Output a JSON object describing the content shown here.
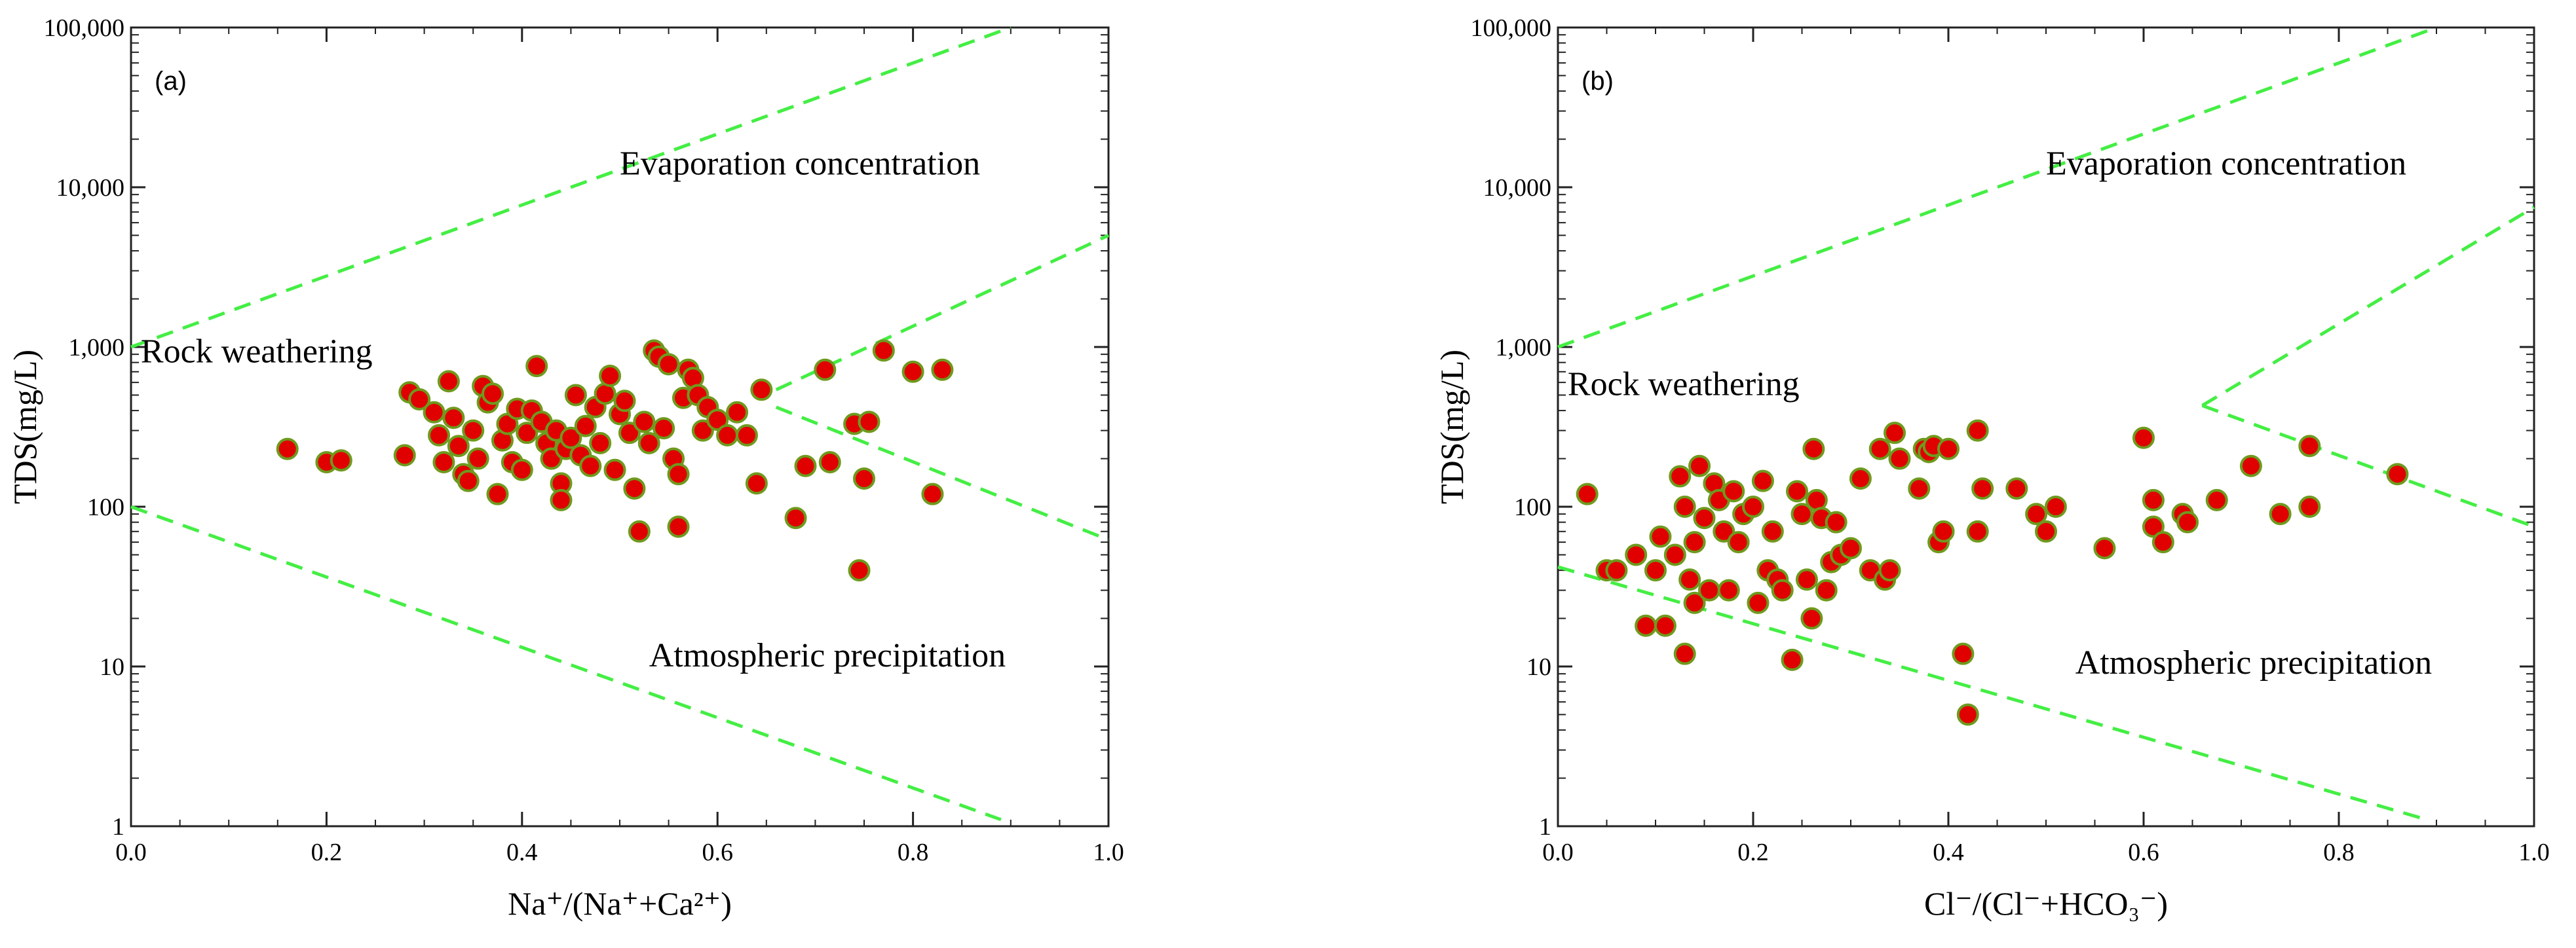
{
  "colors": {
    "point_fill": "#e00000",
    "point_edge": "#6e9a1e",
    "boundary_line": "#44ee44"
  },
  "chart_data": [
    {
      "type": "scatter",
      "panel_label": "(a)",
      "xlabel": "Na⁺/(Na⁺+Ca²⁺)",
      "ylabel": "TDS(mg/L)",
      "xlim": [
        0,
        1
      ],
      "ylim": [
        1,
        100000
      ],
      "yscale": "log",
      "x_ticks": [
        0,
        0.2,
        0.4,
        0.6,
        0.8,
        1.0
      ],
      "x_tick_labels": [
        "0.0",
        "0.2",
        "0.4",
        "0.6",
        "0.8",
        "1.0"
      ],
      "y_ticks": [
        1,
        10,
        100,
        1000,
        10000,
        100000
      ],
      "y_tick_labels": [
        "1",
        "10",
        "100",
        "1,000",
        "10,000",
        "100,000"
      ],
      "annotations": [
        {
          "text": "Evaporation concentration",
          "x": 0.5,
          "y": 12000
        },
        {
          "text": "Rock weathering",
          "x": 0.01,
          "y": 800
        },
        {
          "text": "Atmospheric precipitation",
          "x": 0.53,
          "y": 10
        }
      ],
      "boundaries": [
        [
          [
            0,
            1000
          ],
          [
            0.9,
            100000
          ]
        ],
        [
          [
            0,
            100
          ],
          [
            0.89,
            1.1
          ]
        ],
        [
          [
            0.66,
            540
          ],
          [
            1.0,
            5000
          ]
        ],
        [
          [
            0.66,
            420
          ],
          [
            1.0,
            62
          ]
        ]
      ],
      "series": [
        {
          "name": "samples",
          "points": [
            [
              0.16,
              230
            ],
            [
              0.2,
              190
            ],
            [
              0.215,
              195
            ],
            [
              0.28,
              210
            ],
            [
              0.285,
              520
            ],
            [
              0.295,
              470
            ],
            [
              0.31,
              390
            ],
            [
              0.315,
              280
            ],
            [
              0.32,
              190
            ],
            [
              0.325,
              610
            ],
            [
              0.33,
              360
            ],
            [
              0.335,
              240
            ],
            [
              0.34,
              160
            ],
            [
              0.345,
              145
            ],
            [
              0.35,
              300
            ],
            [
              0.355,
              200
            ],
            [
              0.36,
              570
            ],
            [
              0.365,
              450
            ],
            [
              0.37,
              510
            ],
            [
              0.375,
              120
            ],
            [
              0.38,
              260
            ],
            [
              0.385,
              330
            ],
            [
              0.39,
              190
            ],
            [
              0.395,
              410
            ],
            [
              0.4,
              170
            ],
            [
              0.405,
              290
            ],
            [
              0.41,
              400
            ],
            [
              0.415,
              760
            ],
            [
              0.42,
              340
            ],
            [
              0.425,
              250
            ],
            [
              0.43,
              200
            ],
            [
              0.435,
              300
            ],
            [
              0.44,
              140
            ],
            [
              0.44,
              110
            ],
            [
              0.445,
              230
            ],
            [
              0.45,
              270
            ],
            [
              0.455,
              500
            ],
            [
              0.46,
              210
            ],
            [
              0.465,
              320
            ],
            [
              0.47,
              180
            ],
            [
              0.475,
              420
            ],
            [
              0.48,
              250
            ],
            [
              0.485,
              510
            ],
            [
              0.49,
              660
            ],
            [
              0.495,
              170
            ],
            [
              0.5,
              380
            ],
            [
              0.505,
              460
            ],
            [
              0.51,
              290
            ],
            [
              0.515,
              130
            ],
            [
              0.52,
              70
            ],
            [
              0.525,
              340
            ],
            [
              0.53,
              250
            ],
            [
              0.535,
              950
            ],
            [
              0.54,
              870
            ],
            [
              0.545,
              310
            ],
            [
              0.55,
              780
            ],
            [
              0.555,
              200
            ],
            [
              0.56,
              160
            ],
            [
              0.56,
              75
            ],
            [
              0.565,
              480
            ],
            [
              0.57,
              720
            ],
            [
              0.575,
              640
            ],
            [
              0.58,
              500
            ],
            [
              0.585,
              300
            ],
            [
              0.59,
              420
            ],
            [
              0.6,
              350
            ],
            [
              0.61,
              280
            ],
            [
              0.62,
              390
            ],
            [
              0.63,
              280
            ],
            [
              0.64,
              140
            ],
            [
              0.645,
              540
            ],
            [
              0.68,
              85
            ],
            [
              0.69,
              180
            ],
            [
              0.71,
              720
            ],
            [
              0.715,
              190
            ],
            [
              0.74,
              330
            ],
            [
              0.745,
              40
            ],
            [
              0.75,
              150
            ],
            [
              0.755,
              340
            ],
            [
              0.77,
              950
            ],
            [
              0.8,
              700
            ],
            [
              0.82,
              120
            ],
            [
              0.83,
              720
            ]
          ]
        }
      ]
    },
    {
      "type": "scatter",
      "panel_label": "(b)",
      "xlabel": "Cl⁻/(Cl⁻+HCO₃⁻)",
      "ylabel": "TDS(mg/L)",
      "xlim": [
        0,
        1
      ],
      "ylim": [
        1,
        100000
      ],
      "yscale": "log",
      "x_ticks": [
        0,
        0.2,
        0.4,
        0.6,
        0.8,
        1.0
      ],
      "x_tick_labels": [
        "0.0",
        "0.2",
        "0.4",
        "0.6",
        "0.8",
        "1.0"
      ],
      "y_ticks": [
        1,
        10,
        100,
        1000,
        10000,
        100000
      ],
      "y_tick_labels": [
        "1",
        "10",
        "100",
        "1,000",
        "10,000",
        "100,000"
      ],
      "annotations": [
        {
          "text": "Evaporation concentration",
          "x": 0.5,
          "y": 12000
        },
        {
          "text": "Rock weathering",
          "x": 0.01,
          "y": 500
        },
        {
          "text": "Atmospheric precipitation",
          "x": 0.53,
          "y": 9
        }
      ],
      "boundaries": [
        [
          [
            0,
            1000
          ],
          [
            0.9,
            100000
          ]
        ],
        [
          [
            0,
            42
          ],
          [
            0.89,
            1.1
          ]
        ],
        [
          [
            0.66,
            430
          ],
          [
            1.0,
            7500
          ]
        ],
        [
          [
            0.66,
            430
          ],
          [
            1.0,
            75
          ]
        ]
      ],
      "series": [
        {
          "name": "samples",
          "points": [
            [
              0.03,
              120
            ],
            [
              0.05,
              40
            ],
            [
              0.06,
              40
            ],
            [
              0.08,
              50
            ],
            [
              0.09,
              18
            ],
            [
              0.1,
              40
            ],
            [
              0.105,
              65
            ],
            [
              0.11,
              18
            ],
            [
              0.12,
              50
            ],
            [
              0.125,
              155
            ],
            [
              0.13,
              100
            ],
            [
              0.13,
              12
            ],
            [
              0.135,
              35
            ],
            [
              0.14,
              60
            ],
            [
              0.14,
              25
            ],
            [
              0.145,
              180
            ],
            [
              0.15,
              85
            ],
            [
              0.155,
              30
            ],
            [
              0.16,
              140
            ],
            [
              0.165,
              110
            ],
            [
              0.17,
              70
            ],
            [
              0.175,
              30
            ],
            [
              0.18,
              125
            ],
            [
              0.185,
              60
            ],
            [
              0.19,
              90
            ],
            [
              0.2,
              100
            ],
            [
              0.205,
              25
            ],
            [
              0.21,
              145
            ],
            [
              0.215,
              40
            ],
            [
              0.22,
              70
            ],
            [
              0.225,
              35
            ],
            [
              0.23,
              30
            ],
            [
              0.24,
              11
            ],
            [
              0.245,
              125
            ],
            [
              0.25,
              90
            ],
            [
              0.255,
              35
            ],
            [
              0.26,
              20
            ],
            [
              0.262,
              230
            ],
            [
              0.265,
              110
            ],
            [
              0.27,
              85
            ],
            [
              0.275,
              30
            ],
            [
              0.28,
              45
            ],
            [
              0.285,
              80
            ],
            [
              0.29,
              50
            ],
            [
              0.3,
              55
            ],
            [
              0.31,
              150
            ],
            [
              0.32,
              40
            ],
            [
              0.33,
              230
            ],
            [
              0.335,
              35
            ],
            [
              0.34,
              40
            ],
            [
              0.345,
              290
            ],
            [
              0.35,
              200
            ],
            [
              0.37,
              130
            ],
            [
              0.375,
              230
            ],
            [
              0.38,
              220
            ],
            [
              0.385,
              240
            ],
            [
              0.39,
              60
            ],
            [
              0.395,
              70
            ],
            [
              0.4,
              230
            ],
            [
              0.415,
              12
            ],
            [
              0.42,
              5
            ],
            [
              0.43,
              70
            ],
            [
              0.43,
              300
            ],
            [
              0.435,
              130
            ],
            [
              0.47,
              130
            ],
            [
              0.49,
              90
            ],
            [
              0.5,
              70
            ],
            [
              0.51,
              100
            ],
            [
              0.56,
              55
            ],
            [
              0.6,
              270
            ],
            [
              0.61,
              110
            ],
            [
              0.61,
              75
            ],
            [
              0.62,
              60
            ],
            [
              0.64,
              90
            ],
            [
              0.645,
              80
            ],
            [
              0.675,
              110
            ],
            [
              0.71,
              180
            ],
            [
              0.74,
              90
            ],
            [
              0.77,
              240
            ],
            [
              0.77,
              100
            ],
            [
              0.86,
              160
            ]
          ]
        }
      ]
    }
  ]
}
